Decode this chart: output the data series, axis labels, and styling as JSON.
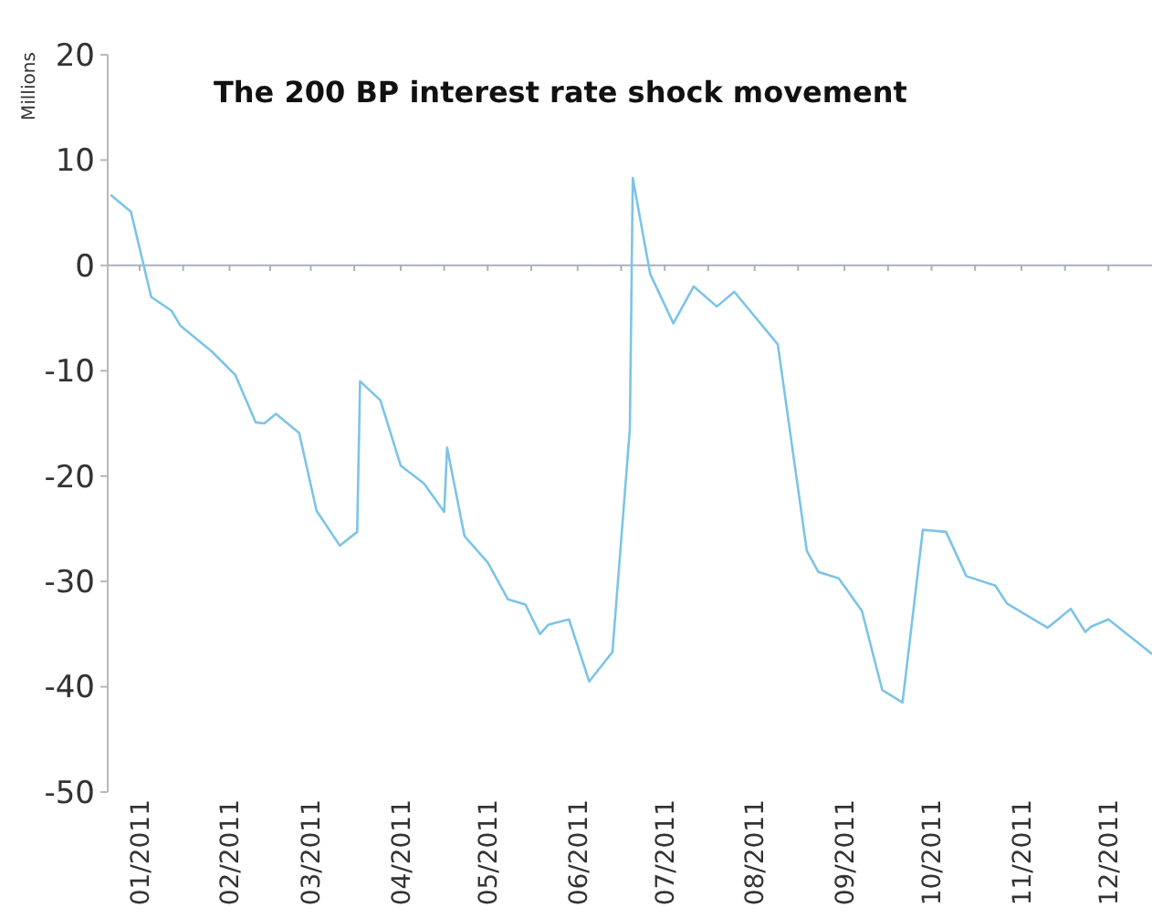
{
  "chart_data": {
    "type": "line",
    "title": "The 200 BP interest rate shock movement",
    "ylabel": "Millions",
    "x": [
      "2010-12-22",
      "2010-12-29",
      "2011-01-05",
      "2011-01-12",
      "2011-01-15",
      "2011-01-26",
      "2011-02-03",
      "2011-02-10",
      "2011-02-13",
      "2011-02-17",
      "2011-02-25",
      "2011-03-03",
      "2011-03-11",
      "2011-03-17",
      "2011-03-18",
      "2011-03-25",
      "2011-04-01",
      "2011-04-09",
      "2011-04-16",
      "2011-04-17",
      "2011-04-23",
      "2011-05-01",
      "2011-05-08",
      "2011-05-14",
      "2011-05-19",
      "2011-05-22",
      "2011-05-29",
      "2011-06-05",
      "2011-06-13",
      "2011-06-19",
      "2011-06-20",
      "2011-06-26",
      "2011-07-04",
      "2011-07-11",
      "2011-07-19",
      "2011-07-25",
      "2011-08-09",
      "2011-08-19",
      "2011-08-23",
      "2011-08-30",
      "2011-09-07",
      "2011-09-14",
      "2011-09-21",
      "2011-09-28",
      "2011-10-06",
      "2011-10-13",
      "2011-10-23",
      "2011-10-27",
      "2011-11-10",
      "2011-11-18",
      "2011-11-23",
      "2011-11-25",
      "2011-12-01",
      "2011-12-11",
      "2011-12-16"
    ],
    "series": [
      {
        "color": "#7cc4e6",
        "values": [
          6.7,
          5.1,
          -3.0,
          -4.3,
          -5.7,
          -8.2,
          -10.4,
          -14.9,
          -15.0,
          -14.1,
          -15.9,
          -23.3,
          -26.6,
          -25.3,
          -11.0,
          -12.8,
          -19.0,
          -20.7,
          -23.4,
          -17.3,
          -25.7,
          -28.2,
          -31.7,
          -32.2,
          -35.0,
          -34.1,
          -33.6,
          -39.5,
          -36.7,
          -15.5,
          8.3,
          -0.8,
          -5.5,
          -2.0,
          -3.9,
          -2.5,
          -7.5,
          -27.1,
          -29.1,
          -29.7,
          -32.8,
          -40.3,
          -41.5,
          -25.1,
          -25.3,
          -29.5,
          -30.4,
          -32.1,
          -34.4,
          -32.6,
          -34.8,
          -34.3,
          -33.6,
          -35.8,
          -36.9
        ]
      }
    ],
    "xlim": [
      "2010-12-21",
      "2011-12-16"
    ],
    "xticks": [
      {
        "value": "2011-01",
        "label": "01/2011"
      },
      {
        "value": "2011-01-16",
        "label": null
      },
      {
        "value": "2011-02",
        "label": "02/2011"
      },
      {
        "value": "2011-02-15",
        "label": null
      },
      {
        "value": "2011-03",
        "label": "03/2011"
      },
      {
        "value": "2011-03-16",
        "label": null
      },
      {
        "value": "2011-04",
        "label": "04/2011"
      },
      {
        "value": "2011-04-16",
        "label": null
      },
      {
        "value": "2011-05",
        "label": "05/2011"
      },
      {
        "value": "2011-05-16",
        "label": null
      },
      {
        "value": "2011-06",
        "label": "06/2011"
      },
      {
        "value": "2011-06-16",
        "label": null
      },
      {
        "value": "2011-07",
        "label": "07/2011"
      },
      {
        "value": "2011-07-16",
        "label": null
      },
      {
        "value": "2011-08",
        "label": "08/2011"
      },
      {
        "value": "2011-08-16",
        "label": null
      },
      {
        "value": "2011-09",
        "label": "09/2011"
      },
      {
        "value": "2011-09-16",
        "label": null
      },
      {
        "value": "2011-10",
        "label": "10/2011"
      },
      {
        "value": "2011-10-16",
        "label": null
      },
      {
        "value": "2011-11",
        "label": "11/2011"
      },
      {
        "value": "2011-11-16",
        "label": null
      },
      {
        "value": "2011-12",
        "label": "12/2011"
      }
    ],
    "ylim": [
      -50,
      20
    ],
    "yticks": [
      -50,
      -40,
      -30,
      -20,
      -10,
      0,
      10,
      20
    ],
    "marker": "none",
    "line_style": "solid"
  }
}
